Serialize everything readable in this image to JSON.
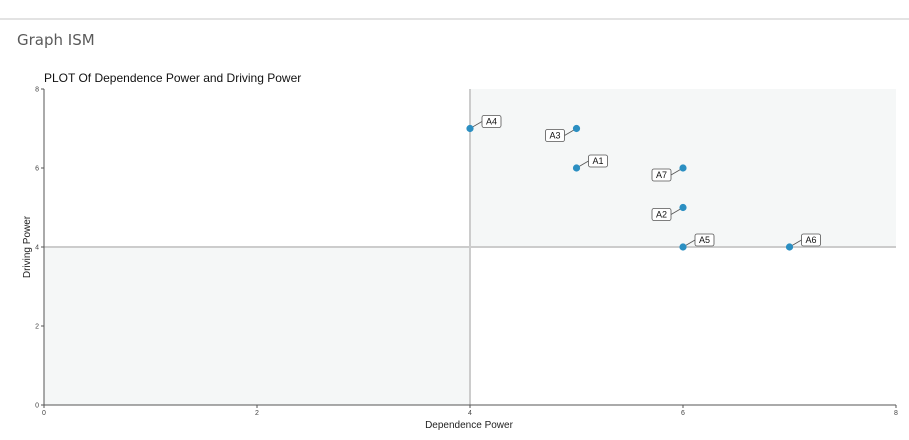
{
  "page": {
    "section_title": "Graph ISM"
  },
  "chart_data": {
    "type": "scatter",
    "title": "PLOT Of Dependence Power and Driving Power",
    "xlabel": "Dependence Power",
    "ylabel": "Driving Power",
    "xlim": [
      0,
      8
    ],
    "ylim": [
      0,
      8
    ],
    "xticks": [
      "0",
      "2",
      "4",
      "6",
      "8"
    ],
    "yticks": [
      "0",
      "2",
      "4",
      "6",
      "8"
    ],
    "divider": {
      "x": 4,
      "y": 4
    },
    "grid": false,
    "legend": "none",
    "colors": {
      "point": "#2b8fc2",
      "quadrant_fill": "#f5f7f7",
      "divider": "#cccccc",
      "axis": "#555555"
    },
    "points": [
      {
        "label": "A1",
        "x": 5,
        "y": 6
      },
      {
        "label": "A2",
        "x": 6,
        "y": 5
      },
      {
        "label": "A3",
        "x": 5,
        "y": 7
      },
      {
        "label": "A4",
        "x": 4,
        "y": 7
      },
      {
        "label": "A5",
        "x": 6,
        "y": 4
      },
      {
        "label": "A6",
        "x": 7,
        "y": 4
      },
      {
        "label": "A7",
        "x": 6,
        "y": 6
      }
    ]
  }
}
